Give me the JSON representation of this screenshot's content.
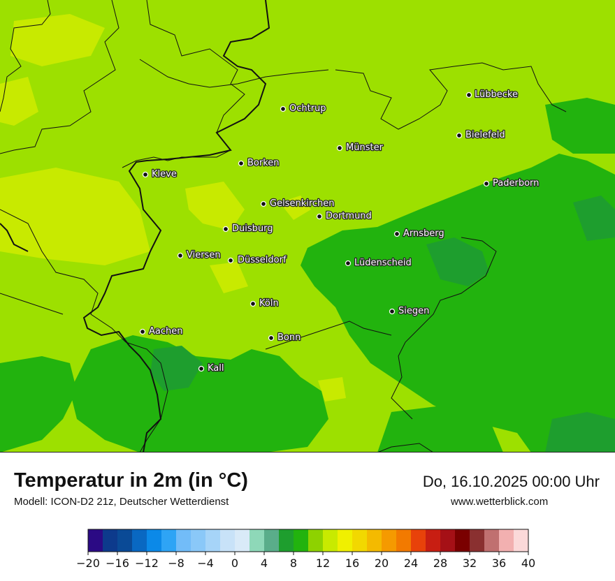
{
  "title": "Temperatur in 2m (in °C)",
  "model": "Modell: ICON-D2 21z, Deutscher Wetterdienst",
  "datetime": "Do, 16.10.2025 00:00 Uhr",
  "website": "www.wetterblick.com",
  "cities": [
    "Lübbecke",
    "Ochtrup",
    "Bielefeld",
    "Münster",
    "Borken",
    "Kleve",
    "Paderborn",
    "Gelsenkirchen",
    "Dortmund",
    "Duisburg",
    "Arnsberg",
    "Viersen",
    "Düsseldorf",
    "Lüdenscheid",
    "Köln",
    "Siegen",
    "Aachen",
    "Bonn",
    "Kall"
  ],
  "legend": {
    "ticks": [
      "−20",
      "−16",
      "−12",
      "−8",
      "−4",
      "0",
      "4",
      "8",
      "12",
      "16",
      "20",
      "24",
      "28",
      "32",
      "36",
      "40"
    ],
    "min": -20,
    "max": 40,
    "step": 2,
    "colors": [
      "#2b0a84",
      "#0d3a8c",
      "#0a4a96",
      "#0968c2",
      "#0b89e8",
      "#2ea4f5",
      "#72bcf8",
      "#8ac8f8",
      "#a6d4f8",
      "#c8e2f8",
      "#d9eaf8",
      "#8ed8b8",
      "#5aad8a",
      "#1e9e2e",
      "#22b30e",
      "#8ed200",
      "#c8ea00",
      "#f0f000",
      "#f2d800",
      "#f4ba00",
      "#f59a00",
      "#f27a00",
      "#e8420a",
      "#c81e12",
      "#a51016",
      "#7a0000",
      "#8a3030",
      "#c07070",
      "#f2b0b0",
      "#fbd9d9"
    ]
  },
  "palette": {
    "base_green": "#9de000",
    "light_green": "#c8ea00",
    "mid_green": "#22b30e",
    "dark_green": "#1e9e2e"
  }
}
